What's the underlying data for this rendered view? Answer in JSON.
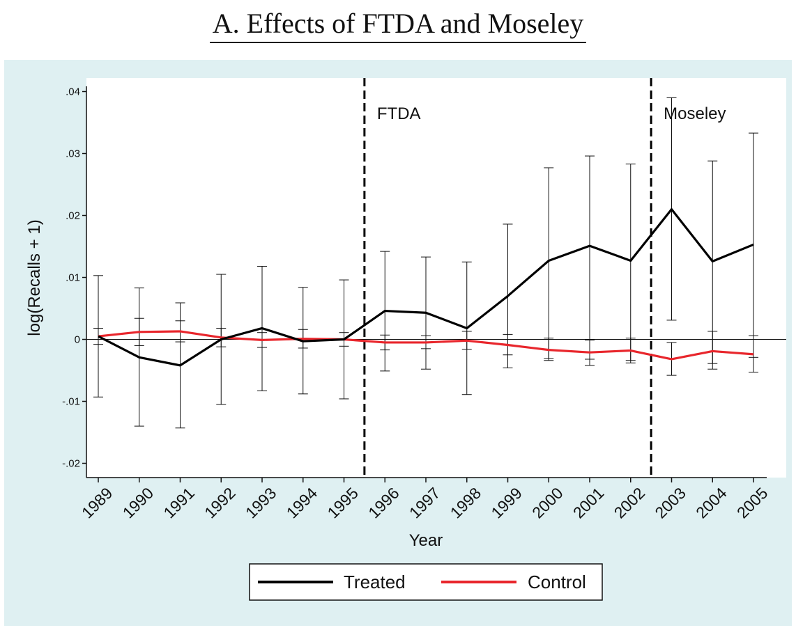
{
  "chart_data": {
    "type": "line",
    "title": "A. Effects of FTDA and Moseley",
    "xlabel": "Year",
    "ylabel": "log(Recalls + 1)",
    "ylim": [
      -0.02,
      0.04
    ],
    "yticks": [
      ".04",
      ".03",
      ".02",
      ".01",
      "0",
      "-.01",
      "-.02"
    ],
    "ytick_values": [
      0.04,
      0.03,
      0.02,
      0.01,
      0,
      -0.01,
      -0.02
    ],
    "categories": [
      "1989",
      "1990",
      "1991",
      "1992",
      "1993",
      "1994",
      "1995",
      "1996",
      "1997",
      "1998",
      "1999",
      "2000",
      "2001",
      "2002",
      "2003",
      "2004",
      "2005"
    ],
    "series": [
      {
        "name": "Treated",
        "color": "#000000",
        "values": [
          0.0005,
          -0.0029,
          -0.0042,
          0.0,
          0.0018,
          -0.0003,
          0.0,
          0.0046,
          0.0043,
          0.0018,
          0.007,
          0.0127,
          0.0151,
          0.0127,
          0.021,
          0.0126,
          0.0153
        ],
        "ci_low": [
          -0.0093,
          -0.014,
          -0.0143,
          -0.0105,
          -0.0083,
          -0.0088,
          -0.0096,
          -0.0051,
          -0.0048,
          -0.0089,
          -0.0046,
          -0.0034,
          -0.0042,
          -0.0038,
          0.0031,
          -0.0048,
          -0.0053
        ],
        "ci_high": [
          0.0103,
          0.0083,
          0.0059,
          0.0105,
          0.0118,
          0.0084,
          0.0096,
          0.0142,
          0.0133,
          0.0125,
          0.0186,
          0.0277,
          0.0296,
          0.0283,
          0.039,
          0.0288,
          0.0333
        ]
      },
      {
        "name": "Control",
        "color": "#e8262c",
        "values": [
          0.0005,
          0.0012,
          0.0013,
          0.0003,
          -0.0001,
          0.0001,
          0.0,
          -0.0005,
          -0.0005,
          -0.0002,
          -0.0009,
          -0.0017,
          -0.0021,
          -0.0018,
          -0.0032,
          -0.0019,
          -0.0024
        ],
        "ci_low": [
          -0.0008,
          -0.001,
          -0.0004,
          -0.0012,
          -0.0013,
          -0.0014,
          -0.0011,
          -0.0017,
          -0.0015,
          -0.0016,
          -0.0025,
          -0.0031,
          -0.0032,
          -0.0034,
          -0.0058,
          -0.0039,
          -0.0029
        ],
        "ci_high": [
          0.0018,
          0.0034,
          0.003,
          0.0018,
          0.0011,
          0.0016,
          0.0011,
          0.0007,
          0.0006,
          0.0013,
          0.0008,
          0.0002,
          -0.0001,
          0.0002,
          -0.0005,
          0.0013,
          0.0006
        ]
      }
    ],
    "vlines": [
      {
        "label": "FTDA",
        "after": "1995"
      },
      {
        "label": "Moseley",
        "after": "2002"
      }
    ],
    "hline": 0,
    "legend": "bottom",
    "grid": false,
    "background_color": "#dff0f2"
  }
}
